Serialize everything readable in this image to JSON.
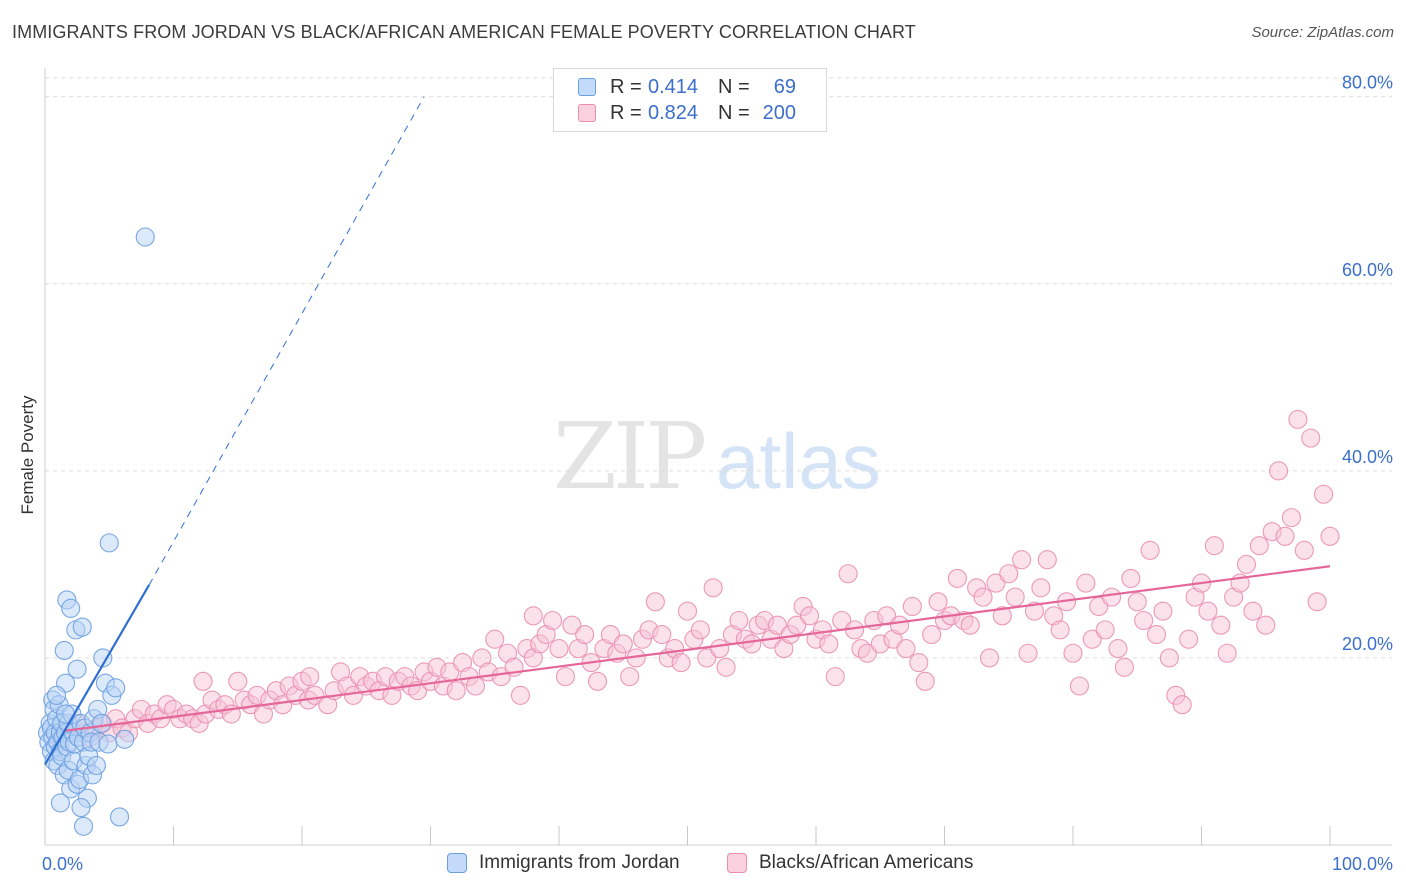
{
  "title": "IMMIGRANTS FROM JORDAN VS BLACK/AFRICAN AMERICAN FEMALE POVERTY CORRELATION CHART",
  "source": "Source: ZipAtlas.com",
  "watermark": {
    "zip": "ZIP",
    "atlas": "atlas"
  },
  "colors": {
    "blue_fill": "#b9d3f5",
    "blue_stroke": "#6a9fe0",
    "blue_line": "#2f6fd0",
    "pink_fill": "#f8c3d6",
    "pink_stroke": "#ea8eb0",
    "pink_line": "#e5679a",
    "tick_text": "#3b6fc9",
    "grid": "#dcdcdc"
  },
  "legend_top": {
    "rows": [
      {
        "swatch": "blue",
        "r_label": "R =",
        "r_value": "0.414",
        "n_label": "N =",
        "n_value": "69"
      },
      {
        "swatch": "pink",
        "r_label": "R =",
        "r_value": "0.824",
        "n_label": "N =",
        "n_value": "200"
      }
    ]
  },
  "legend_bottom": [
    {
      "swatch": "blue",
      "label": "Immigrants from Jordan"
    },
    {
      "swatch": "pink",
      "label": "Blacks/African Americans"
    }
  ],
  "chart_data": {
    "type": "scatter",
    "xlabel": "",
    "ylabel": "Female Poverty",
    "xlim": [
      0,
      100
    ],
    "ylim": [
      0,
      82
    ],
    "x_tick_labels": [
      {
        "value": 0,
        "label": "0.0%"
      },
      {
        "value": 100,
        "label": "100.0%"
      }
    ],
    "y_ticks": [
      {
        "value": 20,
        "label": "20.0%"
      },
      {
        "value": 40,
        "label": "40.0%"
      },
      {
        "value": 60,
        "label": "60.0%"
      },
      {
        "value": 80,
        "label": "80.0%"
      }
    ],
    "x_minor_ticks": [
      0,
      10,
      20,
      30,
      40,
      50,
      60,
      70,
      80,
      90,
      100
    ],
    "grid": "horizontal-dashed",
    "legend_position": "bottom",
    "series": [
      {
        "name": "Immigrants from Jordan",
        "color": "blue",
        "points": [
          [
            0.2,
            12.0
          ],
          [
            0.3,
            11.0
          ],
          [
            0.4,
            13.0
          ],
          [
            0.5,
            10.0
          ],
          [
            0.5,
            12.5
          ],
          [
            0.6,
            15.5
          ],
          [
            0.6,
            11.5
          ],
          [
            0.7,
            14.5
          ],
          [
            0.7,
            9.0
          ],
          [
            0.8,
            12.0
          ],
          [
            0.8,
            10.5
          ],
          [
            0.9,
            13.5
          ],
          [
            1.0,
            11.0
          ],
          [
            1.0,
            8.5
          ],
          [
            1.1,
            15.0
          ],
          [
            1.2,
            12.0
          ],
          [
            1.2,
            10.0
          ],
          [
            1.3,
            9.5
          ],
          [
            1.3,
            13.0
          ],
          [
            1.4,
            11.5
          ],
          [
            1.5,
            20.8
          ],
          [
            1.5,
            7.5
          ],
          [
            1.6,
            17.3
          ],
          [
            1.6,
            12.0
          ],
          [
            1.7,
            26.2
          ],
          [
            1.7,
            10.5
          ],
          [
            1.8,
            8.0
          ],
          [
            1.8,
            13.0
          ],
          [
            1.9,
            11.0
          ],
          [
            2.0,
            25.3
          ],
          [
            2.0,
            6.0
          ],
          [
            2.1,
            14.0
          ],
          [
            2.2,
            12.0
          ],
          [
            2.2,
            9.0
          ],
          [
            2.3,
            10.8
          ],
          [
            2.4,
            23.0
          ],
          [
            2.5,
            18.8
          ],
          [
            2.5,
            6.5
          ],
          [
            2.6,
            11.5
          ],
          [
            2.7,
            7.0
          ],
          [
            2.8,
            13.0
          ],
          [
            2.9,
            23.3
          ],
          [
            3.0,
            11.0
          ],
          [
            3.0,
            2.0
          ],
          [
            3.1,
            12.5
          ],
          [
            3.2,
            8.5
          ],
          [
            3.3,
            5.0
          ],
          [
            3.4,
            9.5
          ],
          [
            3.5,
            12.0
          ],
          [
            3.6,
            11.0
          ],
          [
            3.7,
            7.5
          ],
          [
            3.8,
            13.5
          ],
          [
            4.0,
            8.5
          ],
          [
            4.1,
            14.5
          ],
          [
            4.2,
            11.0
          ],
          [
            4.4,
            13.0
          ],
          [
            4.5,
            20.0
          ],
          [
            4.7,
            17.3
          ],
          [
            4.9,
            10.8
          ],
          [
            5.0,
            32.3
          ],
          [
            5.2,
            16.0
          ],
          [
            5.5,
            16.8
          ],
          [
            5.8,
            3.0
          ],
          [
            6.2,
            11.3
          ],
          [
            7.8,
            65.0
          ],
          [
            1.2,
            4.5
          ],
          [
            1.6,
            14.0
          ],
          [
            2.8,
            4.0
          ],
          [
            0.9,
            16.0
          ]
        ]
      },
      {
        "name": "Blacks/African Americans",
        "color": "pink",
        "points": [
          [
            1.5,
            11.5
          ],
          [
            2.0,
            12.0
          ],
          [
            2.5,
            13.0
          ],
          [
            3.0,
            12.0
          ],
          [
            3.5,
            11.5
          ],
          [
            4.0,
            12.5
          ],
          [
            4.5,
            13.0
          ],
          [
            5.0,
            12.0
          ],
          [
            5.5,
            13.5
          ],
          [
            6.0,
            12.5
          ],
          [
            6.5,
            12.0
          ],
          [
            7.0,
            13.5
          ],
          [
            7.5,
            14.5
          ],
          [
            8.0,
            13.0
          ],
          [
            8.5,
            14.0
          ],
          [
            9.0,
            13.5
          ],
          [
            9.5,
            15.0
          ],
          [
            10.0,
            14.5
          ],
          [
            10.5,
            13.5
          ],
          [
            11.0,
            14.0
          ],
          [
            11.5,
            13.5
          ],
          [
            12.0,
            13.0
          ],
          [
            12.5,
            14.0
          ],
          [
            13.0,
            15.5
          ],
          [
            13.5,
            14.5
          ],
          [
            14.0,
            15.0
          ],
          [
            14.5,
            14.0
          ],
          [
            15.0,
            17.5
          ],
          [
            15.5,
            15.5
          ],
          [
            16.0,
            15.0
          ],
          [
            16.5,
            16.0
          ],
          [
            17.0,
            14.0
          ],
          [
            17.5,
            15.5
          ],
          [
            18.0,
            16.5
          ],
          [
            18.5,
            15.0
          ],
          [
            19.0,
            17.0
          ],
          [
            19.5,
            16.0
          ],
          [
            20.0,
            17.5
          ],
          [
            20.5,
            15.5
          ],
          [
            21.0,
            16.0
          ],
          [
            22.0,
            15.0
          ],
          [
            22.5,
            16.5
          ],
          [
            23.0,
            18.5
          ],
          [
            23.5,
            17.0
          ],
          [
            24.0,
            16.0
          ],
          [
            24.5,
            18.0
          ],
          [
            25.0,
            17.0
          ],
          [
            25.5,
            17.5
          ],
          [
            26.0,
            16.5
          ],
          [
            26.5,
            18.0
          ],
          [
            27.0,
            16.0
          ],
          [
            27.5,
            17.5
          ],
          [
            28.0,
            18.0
          ],
          [
            28.5,
            17.0
          ],
          [
            29.0,
            16.5
          ],
          [
            29.5,
            18.5
          ],
          [
            30.0,
            17.5
          ],
          [
            30.5,
            19.0
          ],
          [
            31.0,
            17.0
          ],
          [
            31.5,
            18.5
          ],
          [
            32.0,
            16.5
          ],
          [
            32.5,
            19.5
          ],
          [
            33.0,
            18.0
          ],
          [
            33.5,
            17.0
          ],
          [
            34.0,
            20.0
          ],
          [
            34.5,
            18.5
          ],
          [
            35.0,
            22.0
          ],
          [
            35.5,
            18.0
          ],
          [
            36.0,
            20.5
          ],
          [
            36.5,
            19.0
          ],
          [
            37.0,
            16.0
          ],
          [
            37.5,
            21.0
          ],
          [
            38.0,
            20.0
          ],
          [
            38.5,
            21.5
          ],
          [
            39.0,
            22.5
          ],
          [
            39.5,
            24.0
          ],
          [
            40.0,
            21.0
          ],
          [
            40.5,
            18.0
          ],
          [
            41.0,
            23.5
          ],
          [
            41.5,
            21.0
          ],
          [
            42.0,
            22.5
          ],
          [
            42.5,
            19.5
          ],
          [
            43.0,
            17.5
          ],
          [
            43.5,
            21.0
          ],
          [
            44.0,
            22.5
          ],
          [
            44.5,
            20.5
          ],
          [
            45.0,
            21.5
          ],
          [
            45.5,
            18.0
          ],
          [
            46.0,
            20.0
          ],
          [
            46.5,
            22.0
          ],
          [
            47.0,
            23.0
          ],
          [
            47.5,
            26.0
          ],
          [
            48.0,
            22.5
          ],
          [
            48.5,
            20.0
          ],
          [
            49.0,
            21.0
          ],
          [
            49.5,
            19.5
          ],
          [
            50.0,
            25.0
          ],
          [
            50.5,
            22.0
          ],
          [
            51.0,
            23.0
          ],
          [
            51.5,
            20.0
          ],
          [
            52.0,
            27.5
          ],
          [
            52.5,
            21.0
          ],
          [
            53.0,
            19.0
          ],
          [
            53.5,
            22.5
          ],
          [
            54.0,
            24.0
          ],
          [
            54.5,
            22.0
          ],
          [
            55.0,
            21.5
          ],
          [
            55.5,
            23.5
          ],
          [
            56.0,
            24.0
          ],
          [
            56.5,
            22.0
          ],
          [
            57.0,
            23.5
          ],
          [
            57.5,
            21.0
          ],
          [
            58.0,
            22.5
          ],
          [
            58.5,
            23.5
          ],
          [
            59.0,
            25.5
          ],
          [
            59.5,
            24.5
          ],
          [
            60.0,
            22.0
          ],
          [
            60.5,
            23.0
          ],
          [
            61.0,
            21.5
          ],
          [
            61.5,
            18.0
          ],
          [
            62.0,
            24.0
          ],
          [
            62.5,
            29.0
          ],
          [
            63.0,
            23.0
          ],
          [
            63.5,
            21.0
          ],
          [
            64.0,
            20.5
          ],
          [
            64.5,
            24.0
          ],
          [
            65.0,
            21.5
          ],
          [
            65.5,
            24.5
          ],
          [
            66.0,
            22.0
          ],
          [
            66.5,
            23.5
          ],
          [
            67.0,
            21.0
          ],
          [
            67.5,
            25.5
          ],
          [
            68.0,
            19.5
          ],
          [
            68.5,
            17.5
          ],
          [
            69.0,
            22.5
          ],
          [
            69.5,
            26.0
          ],
          [
            70.0,
            24.0
          ],
          [
            70.5,
            24.5
          ],
          [
            71.0,
            28.5
          ],
          [
            71.5,
            24.0
          ],
          [
            72.0,
            23.5
          ],
          [
            72.5,
            27.5
          ],
          [
            73.0,
            26.5
          ],
          [
            73.5,
            20.0
          ],
          [
            74.0,
            28.0
          ],
          [
            74.5,
            24.5
          ],
          [
            75.0,
            29.0
          ],
          [
            75.5,
            26.5
          ],
          [
            76.0,
            30.5
          ],
          [
            76.5,
            20.5
          ],
          [
            77.0,
            25.0
          ],
          [
            77.5,
            27.5
          ],
          [
            78.0,
            30.5
          ],
          [
            78.5,
            24.5
          ],
          [
            79.0,
            23.0
          ],
          [
            79.5,
            26.0
          ],
          [
            80.0,
            20.5
          ],
          [
            80.5,
            17.0
          ],
          [
            81.0,
            28.0
          ],
          [
            81.5,
            22.0
          ],
          [
            82.0,
            25.5
          ],
          [
            82.5,
            23.0
          ],
          [
            83.0,
            26.5
          ],
          [
            83.5,
            21.0
          ],
          [
            84.0,
            19.0
          ],
          [
            84.5,
            28.5
          ],
          [
            85.0,
            26.0
          ],
          [
            85.5,
            24.0
          ],
          [
            86.0,
            31.5
          ],
          [
            86.5,
            22.5
          ],
          [
            87.0,
            25.0
          ],
          [
            87.5,
            20.0
          ],
          [
            88.0,
            16.0
          ],
          [
            88.5,
            15.0
          ],
          [
            89.0,
            22.0
          ],
          [
            89.5,
            26.5
          ],
          [
            90.0,
            28.0
          ],
          [
            90.5,
            25.0
          ],
          [
            91.0,
            32.0
          ],
          [
            91.5,
            23.5
          ],
          [
            92.0,
            20.5
          ],
          [
            92.5,
            26.5
          ],
          [
            93.0,
            28.0
          ],
          [
            93.5,
            30.0
          ],
          [
            94.0,
            25.0
          ],
          [
            94.5,
            32.0
          ],
          [
            95.0,
            23.5
          ],
          [
            95.5,
            33.5
          ],
          [
            96.0,
            40.0
          ],
          [
            96.5,
            33.0
          ],
          [
            97.0,
            35.0
          ],
          [
            97.5,
            45.5
          ],
          [
            98.0,
            31.5
          ],
          [
            98.5,
            43.5
          ],
          [
            99.0,
            26.0
          ],
          [
            99.5,
            37.5
          ],
          [
            100.0,
            33.0
          ],
          [
            12.3,
            17.5
          ],
          [
            20.6,
            18.0
          ],
          [
            38.0,
            24.5
          ]
        ]
      }
    ],
    "trendlines": [
      {
        "series": "Immigrants from Jordan",
        "solid_from": [
          0,
          8.6
        ],
        "solid_to": [
          8.1,
          27.8
        ],
        "dashed_to": [
          29.5,
          80.0
        ]
      },
      {
        "series": "Blacks/African Americans",
        "from": [
          1.5,
          12.2
        ],
        "to": [
          100.0,
          29.8
        ]
      }
    ]
  }
}
